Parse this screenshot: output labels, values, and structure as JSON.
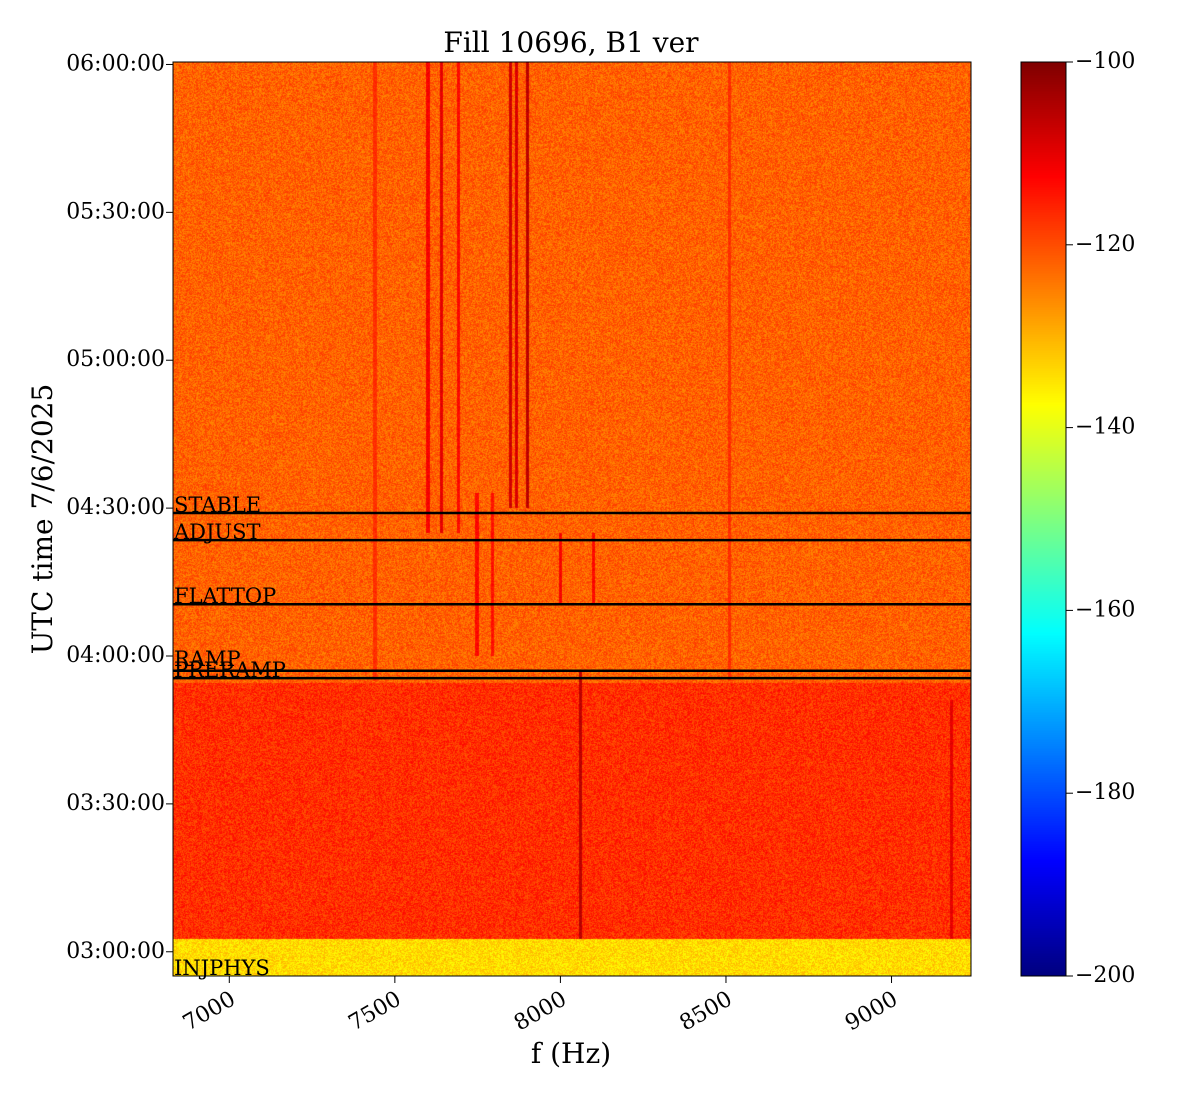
{
  "chart_data": {
    "type": "heatmap",
    "title": "Fill 10696, B1 ver",
    "xlabel": "f (Hz)",
    "ylabel": "UTC time 7/6/2025",
    "xlim": [
      6830,
      9240
    ],
    "ylim": [
      "02:55:05",
      "06:00:30"
    ],
    "x_ticks": [
      7000,
      7500,
      8000,
      8500,
      9000
    ],
    "x_tick_labels": [
      "7000",
      "7500",
      "8000",
      "8500",
      "9000"
    ],
    "y_ticks": [
      "06:00:00",
      "05:30:00",
      "05:00:00",
      "04:30:00",
      "04:00:00",
      "03:30:00",
      "03:00:00"
    ],
    "colorbar": {
      "colormap": "jet",
      "min": -200,
      "max": -100,
      "ticks": [
        -100,
        -120,
        -140,
        -160,
        -180,
        -200
      ],
      "tick_labels": [
        "−100",
        "−120",
        "−140",
        "−160",
        "−180",
        "−200"
      ]
    },
    "regions": [
      {
        "from": "03:54:30",
        "to": "06:00:30",
        "level": -122
      },
      {
        "from": "03:02:30",
        "to": "03:54:30",
        "level": -117
      },
      {
        "from": "02:55:05",
        "to": "03:02:30",
        "level": -134
      }
    ],
    "beam_modes": [
      {
        "label": "INJPHYS",
        "time": "02:55:05"
      },
      {
        "label": "PRERAMP",
        "time": "03:55:30"
      },
      {
        "label": "RAMP",
        "time": "03:57:00"
      },
      {
        "label": "FLATTOP",
        "time": "04:10:30"
      },
      {
        "label": "ADJUST",
        "time": "04:23:30"
      },
      {
        "label": "STABLE",
        "time": "04:29:00"
      }
    ],
    "spectral_lines": [
      {
        "f": 7600,
        "from": "04:25:00",
        "to": "06:00:30",
        "level": -112
      },
      {
        "f": 7640,
        "from": "04:25:00",
        "to": "06:00:30",
        "level": -110
      },
      {
        "f": 7693,
        "from": "04:25:00",
        "to": "06:00:30",
        "level": -113
      },
      {
        "f": 7748,
        "from": "04:00:00",
        "to": "04:33:00",
        "level": -113
      },
      {
        "f": 7795,
        "from": "04:00:00",
        "to": "04:33:00",
        "level": -114
      },
      {
        "f": 7850,
        "from": "04:30:00",
        "to": "06:00:30",
        "level": -108
      },
      {
        "f": 7868,
        "from": "04:30:00",
        "to": "06:00:30",
        "level": -109
      },
      {
        "f": 7900,
        "from": "04:30:00",
        "to": "06:00:30",
        "level": -106
      },
      {
        "f": 8000,
        "from": "04:10:30",
        "to": "04:25:00",
        "level": -112
      },
      {
        "f": 8100,
        "from": "04:10:30",
        "to": "04:25:00",
        "level": -113
      },
      {
        "f": 8060,
        "from": "03:02:30",
        "to": "03:57:00",
        "level": -106
      },
      {
        "f": 9180,
        "from": "03:02:30",
        "to": "03:51:00",
        "level": -110
      },
      {
        "f": 7440,
        "from": "03:55:00",
        "to": "06:00:30",
        "level": -117
      },
      {
        "f": 8510,
        "from": "03:55:00",
        "to": "06:00:30",
        "level": -117
      }
    ]
  }
}
